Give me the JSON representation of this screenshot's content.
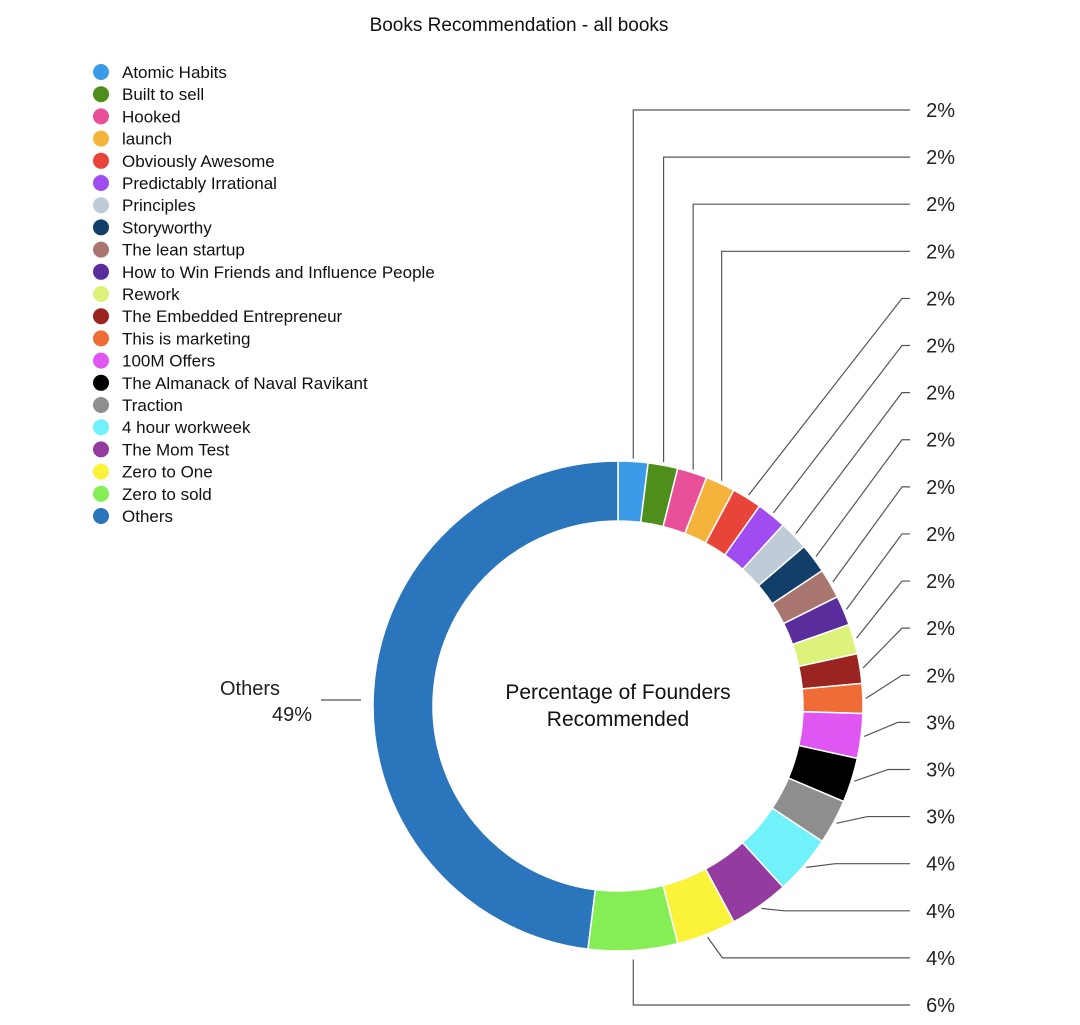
{
  "chart_data": {
    "type": "donut",
    "title": "Books Recommendation - all books",
    "center_label_line1": "Percentage of Founders",
    "center_label_line2": "Recommended",
    "unit": "%",
    "legend_position": "top-left",
    "slices": [
      {
        "name": "Atomic Habits",
        "value": 2,
        "label": "2%",
        "color": "#3b9be8"
      },
      {
        "name": "Built to sell",
        "value": 2,
        "label": "2%",
        "color": "#4e8e1a"
      },
      {
        "name": "Hooked",
        "value": 2,
        "label": "2%",
        "color": "#e8509a"
      },
      {
        "name": "launch",
        "value": 2,
        "label": "2%",
        "color": "#f4b43c"
      },
      {
        "name": "Obviously Awesome",
        "value": 2,
        "label": "2%",
        "color": "#e8443a"
      },
      {
        "name": "Predictably Irrational",
        "value": 2,
        "label": "2%",
        "color": "#a04cf0"
      },
      {
        "name": "Principles",
        "value": 2,
        "label": "2%",
        "color": "#bfcbd6"
      },
      {
        "name": "Storyworthy",
        "value": 2,
        "label": "2%",
        "color": "#123f6a"
      },
      {
        "name": "The lean startup",
        "value": 2,
        "label": "2%",
        "color": "#a9756f"
      },
      {
        "name": "How to Win Friends and Influence People",
        "value": 2,
        "label": "2%",
        "color": "#5a2d9c"
      },
      {
        "name": "Rework",
        "value": 2,
        "label": "2%",
        "color": "#dcf27a"
      },
      {
        "name": "The Embedded Entrepreneur",
        "value": 2,
        "label": "2%",
        "color": "#9a2420"
      },
      {
        "name": "This is marketing",
        "value": 2,
        "label": "2%",
        "color": "#ef6c36"
      },
      {
        "name": "100M Offers",
        "value": 3,
        "label": "3%",
        "color": "#e056f3"
      },
      {
        "name": "The Almanack of Naval Ravikant",
        "value": 3,
        "label": "3%",
        "color": "#000000"
      },
      {
        "name": "Traction",
        "value": 3,
        "label": "3%",
        "color": "#8e8e8e"
      },
      {
        "name": "4 hour workweek",
        "value": 4,
        "label": "4%",
        "color": "#6ff2fa"
      },
      {
        "name": "The Mom Test",
        "value": 4,
        "label": "4%",
        "color": "#933b9e"
      },
      {
        "name": "Zero to One",
        "value": 4,
        "label": "4%",
        "color": "#fbf23a"
      },
      {
        "name": "Zero to sold",
        "value": 6,
        "label": "6%",
        "color": "#86ee55"
      },
      {
        "name": "Others",
        "value": 49,
        "label": "49%",
        "color": "#2a75bb"
      }
    ]
  }
}
